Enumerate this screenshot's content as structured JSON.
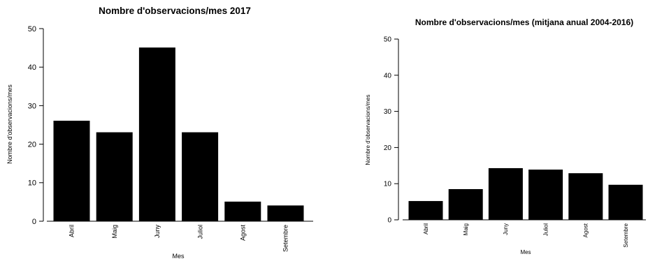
{
  "chart_data": [
    {
      "type": "bar",
      "title": "Nombre d'observacions/mes 2017",
      "xlabel": "Mes",
      "ylabel": "Nombre d'observacions/mes",
      "categories": [
        "Abril",
        "Maig",
        "Juny",
        "Juliol",
        "Agost",
        "Setembre"
      ],
      "values": [
        26,
        23,
        45,
        23,
        5,
        4
      ],
      "ylim": [
        0,
        50
      ],
      "yticks": [
        0,
        10,
        20,
        30,
        40,
        50
      ],
      "bar_color": "#000000",
      "grid": false
    },
    {
      "type": "bar",
      "title": "Nombre d'observacions/mes (mitjana anual 2004-2016)",
      "xlabel": "Mes",
      "ylabel": "Nombre d'observacions/mes",
      "categories": [
        "Abril",
        "Maig",
        "Juny",
        "Juliol",
        "Agost",
        "Setembre"
      ],
      "values": [
        5.1,
        8.4,
        14.2,
        13.8,
        12.8,
        9.6
      ],
      "ylim": [
        0,
        50
      ],
      "yticks": [
        0,
        10,
        20,
        30,
        40,
        50
      ],
      "bar_color": "#000000",
      "grid": false
    }
  ]
}
